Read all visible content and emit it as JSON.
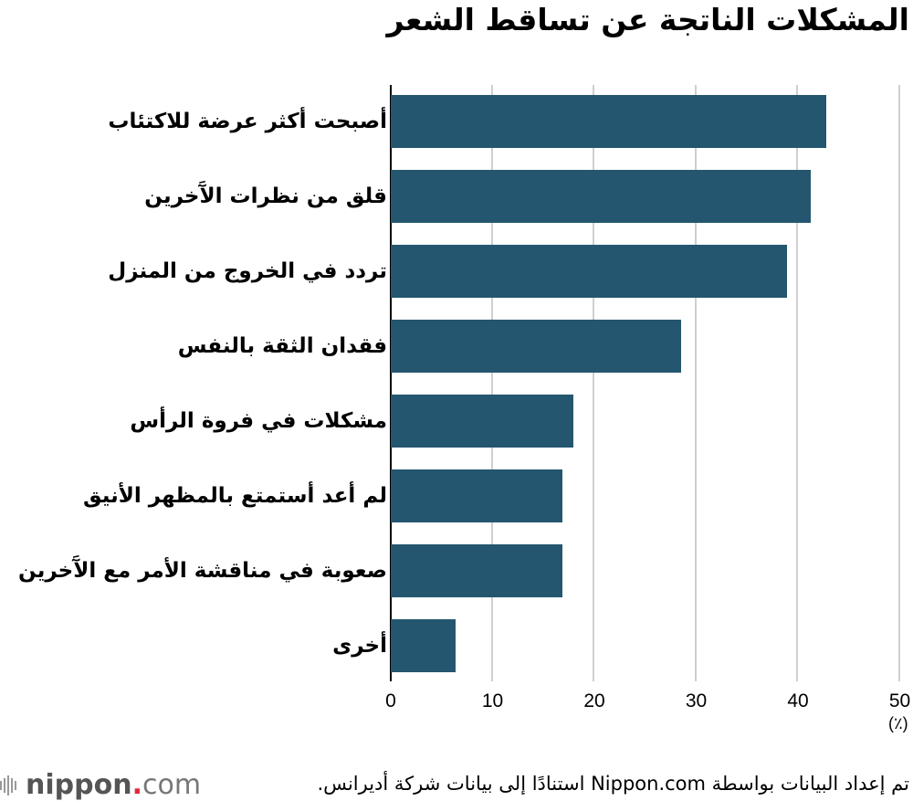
{
  "chart_data": {
    "type": "bar",
    "orientation": "horizontal",
    "title": "المشكلات الناتجة عن تساقط الشعر",
    "categories": [
      "أصبحت أكثر عرضة للاكتئاب",
      "قلق من نظرات الآَخرين",
      "تردد في الخروج من المنزل",
      "فقدان الثقة بالنفس",
      "مشكلات في فروة الرأس",
      "لم أعد أستمتع بالمظهر الأنيق",
      "صعوبة في مناقشة الأمر مع الآَخرين",
      "أخرى"
    ],
    "values": [
      42.8,
      41.3,
      38.9,
      28.5,
      17.9,
      16.9,
      16.9,
      6.4
    ],
    "xlabel": "",
    "unit": "(٪)",
    "xlim": [
      0,
      50
    ],
    "xticks": [
      "0",
      "10",
      "20",
      "30",
      "40",
      "50"
    ],
    "grid": true,
    "bar_color": "#24566f"
  },
  "footer": {
    "logo_brand": "nippon",
    "logo_dot": ".",
    "logo_suffix": "com",
    "source": "تم إعداد البيانات بواسطة Nippon.com استنادًا إلى بيانات شركة أديرانس."
  }
}
